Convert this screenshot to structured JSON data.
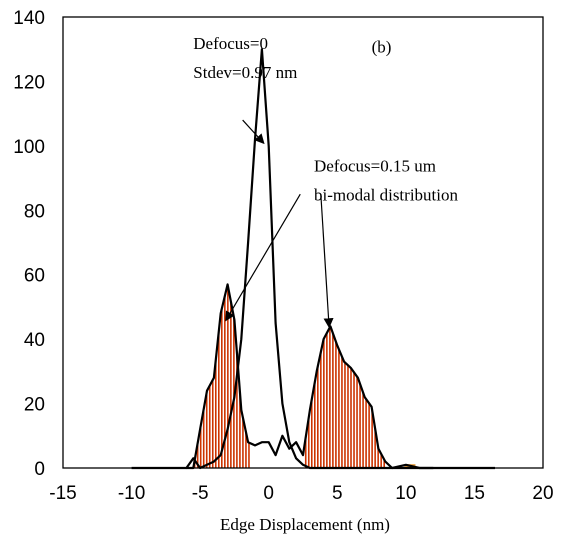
{
  "chart_data": {
    "type": "line",
    "title": "",
    "panel_label": "(b)",
    "xlabel": "Edge Displacement (nm)",
    "ylabel": "",
    "xlim": [
      -15,
      20
    ],
    "ylim": [
      0,
      140
    ],
    "xticks": [
      -15,
      -10,
      -5,
      0,
      5,
      10,
      15,
      20
    ],
    "yticks": [
      0,
      20,
      40,
      60,
      80,
      100,
      120,
      140
    ],
    "grid": false,
    "series": [
      {
        "style": "black-line",
        "x": [
          -10,
          -9,
          -8,
          -7,
          -6,
          -5.5,
          -5,
          -4.5,
          -4,
          -3.5,
          -3,
          -2.5,
          -2,
          -1.5,
          -1,
          -0.5,
          0,
          0.5,
          1,
          1.5,
          2,
          2.5,
          3,
          3.5,
          4,
          4.5,
          5,
          5.5,
          6,
          7,
          8,
          9,
          10,
          11,
          12,
          13,
          14,
          15,
          16.5
        ],
        "y": [
          0,
          0,
          0,
          0,
          0,
          3,
          0,
          1,
          2,
          4,
          12,
          22,
          40,
          70,
          102,
          130,
          100,
          45,
          20,
          8,
          3,
          1,
          0,
          0,
          0,
          0,
          0,
          0,
          0,
          0,
          0,
          0,
          1,
          0,
          0,
          0,
          0,
          0,
          0
        ]
      },
      {
        "style": "black-line-hatched",
        "x": [
          -6,
          -5.5,
          -5,
          -4.5,
          -4,
          -3.5,
          -3,
          -2.5,
          -2,
          -1.5,
          -1,
          -0.5,
          0,
          0.5,
          1,
          1.5,
          2,
          2.5,
          3,
          3.5,
          4,
          4.5,
          5,
          5.5,
          6,
          6.5,
          7,
          7.5,
          8,
          8.5,
          9,
          10,
          11,
          12
        ],
        "y": [
          0,
          0,
          12,
          24,
          28,
          48,
          57,
          46,
          18,
          8,
          7,
          8,
          8,
          4,
          10,
          6,
          8,
          4,
          18,
          30,
          40,
          44,
          38,
          33,
          31,
          28,
          22,
          19,
          6,
          2,
          0,
          0,
          0,
          0
        ]
      }
    ],
    "annotations": [
      {
        "text": "Defocus=0",
        "x": -5.5,
        "y": 130
      },
      {
        "text": "Stdev=0.97 nm",
        "x": -5.5,
        "y": 121
      },
      {
        "text": "Defocus=0.15 um",
        "x": 3.3,
        "y": 92
      },
      {
        "text": "bi-modal distribution",
        "x": 3.3,
        "y": 83
      }
    ],
    "colors": {
      "line": "#000000",
      "hatch": "#cc3300"
    }
  }
}
